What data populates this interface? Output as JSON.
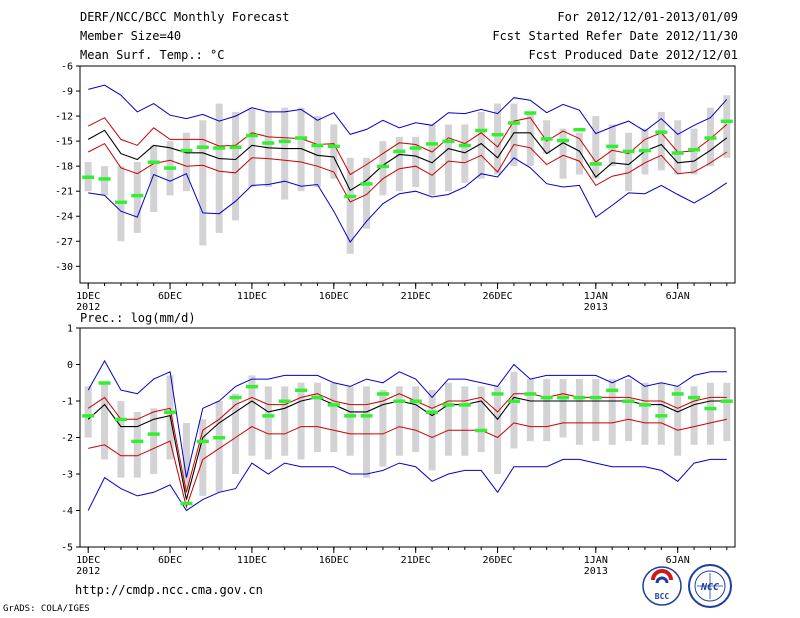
{
  "header": {
    "title": "DERF/NCC/BCC Monthly Forecast",
    "member_size": "Member Size=40",
    "variable": "Mean Surf. Temp.: °C",
    "forecast_for": "For 2012/12/01-2013/01/09",
    "started_refer": "Fcst Started Refer Date 2012/11/30",
    "produced": "Fcst Produced Date 2012/12/01"
  },
  "footer": {
    "url": "http://cmdp.ncc.cma.gov.cn",
    "grads": "GrADS: COLA/IGES",
    "logo_bcc": "BCC",
    "logo_ncc": "NCC"
  },
  "colors": {
    "mean": "#000000",
    "spread": "#cc0000",
    "extreme": "#0000cc",
    "observed": "#33ee33",
    "box": "#d3d3d6"
  },
  "chart_data": [
    {
      "type": "line",
      "title": "Mean Surf. Temp.: °C",
      "ylabel": "",
      "ylim": [
        -32,
        -6
      ],
      "yticks": [
        -6,
        -9,
        -12,
        -15,
        -18,
        -21,
        -24,
        -27,
        -30
      ],
      "xticks": [
        {
          "day": 1,
          "label": "1DEC",
          "sub": "2012"
        },
        {
          "day": 6,
          "label": "6DEC",
          "sub": ""
        },
        {
          "day": 11,
          "label": "11DEC",
          "sub": ""
        },
        {
          "day": 16,
          "label": "16DEC",
          "sub": ""
        },
        {
          "day": 21,
          "label": "21DEC",
          "sub": ""
        },
        {
          "day": 26,
          "label": "26DEC",
          "sub": ""
        },
        {
          "day": 32,
          "label": "1JAN",
          "sub": "2013"
        },
        {
          "day": 37,
          "label": "6JAN",
          "sub": ""
        }
      ],
      "days": 40,
      "box_low": [
        -21,
        -21.5,
        -27,
        -26,
        -23.5,
        -21.5,
        -21,
        -27.5,
        -26,
        -24.5,
        -20.5,
        -20.5,
        -22,
        -21,
        -20.5,
        -19.5,
        -28.5,
        -25.5,
        -21.5,
        -21,
        -20.5,
        -21.5,
        -21,
        -20,
        -19.5,
        -19,
        -18,
        -18,
        -16.5,
        -19.5,
        -19,
        -19.5,
        -18,
        -21,
        -19,
        -18.5,
        -19,
        -19,
        -18,
        -17
      ],
      "box_high": [
        -17.5,
        -18,
        -18,
        -17.5,
        -15.5,
        -15,
        -14,
        -12.5,
        -10.5,
        -11.5,
        -11,
        -11.5,
        -11,
        -11,
        -12,
        -13,
        -17,
        -17,
        -15,
        -14.5,
        -14.5,
        -13,
        -13,
        -13,
        -11.5,
        -10.5,
        -10.5,
        -11.5,
        -12.5,
        -13.5,
        -14,
        -12,
        -13,
        -14,
        -13.5,
        -11.5,
        -12.5,
        -13.5,
        -11,
        -9.5
      ],
      "series": [
        {
          "name": "max",
          "color": "#0000cc",
          "values": [
            -8.8,
            -8.3,
            -9.5,
            -11.5,
            -10.5,
            -11.9,
            -12.3,
            -11.8,
            -12.6,
            -12,
            -11,
            -11.5,
            -11.5,
            -11.2,
            -12.5,
            -11.6,
            -14.2,
            -13.6,
            -12.5,
            -13.4,
            -12.8,
            -13.1,
            -11.6,
            -11.7,
            -11.2,
            -11.7,
            -9.8,
            -10.1,
            -11.6,
            -10.6,
            -11.3,
            -14.1,
            -13.3,
            -12.6,
            -13.8,
            -12.3,
            -14.2,
            -13.1,
            -12.2,
            -10
          ]
        },
        {
          "name": "upper",
          "color": "#cc0000",
          "values": [
            -13.2,
            -12.2,
            -14.8,
            -15.5,
            -13.4,
            -14.8,
            -14.8,
            -14.8,
            -15.6,
            -15.5,
            -14,
            -14.5,
            -14.6,
            -14.7,
            -15.4,
            -15.3,
            -19,
            -17.8,
            -16.5,
            -15.2,
            -15.4,
            -16.3,
            -14.6,
            -15.3,
            -14,
            -15.7,
            -12.6,
            -12.2,
            -15,
            -13.8,
            -14.7,
            -17.5,
            -16.1,
            -16.5,
            -14.8,
            -14,
            -16.3,
            -16.2,
            -14.7,
            -13
          ]
        },
        {
          "name": "mean",
          "color": "#000000",
          "values": [
            -14.8,
            -13.7,
            -16.5,
            -17.2,
            -15.5,
            -15.8,
            -16.4,
            -16.4,
            -17.1,
            -17.2,
            -15.5,
            -15.8,
            -15.9,
            -15.9,
            -16.7,
            -16.9,
            -20.9,
            -19.7,
            -17.9,
            -16.6,
            -16.8,
            -17.6,
            -15.9,
            -16.4,
            -15.3,
            -17.0,
            -14.0,
            -14.0,
            -16.5,
            -15.2,
            -16.2,
            -19.3,
            -17.6,
            -17.8,
            -16.2,
            -15.4,
            -17.6,
            -17.4,
            -16.1,
            -14.6
          ]
        },
        {
          "name": "lower",
          "color": "#cc0000",
          "values": [
            -16.3,
            -15.3,
            -18.2,
            -18.9,
            -17.7,
            -17.3,
            -18,
            -17.9,
            -18.6,
            -18.8,
            -17,
            -17.1,
            -17.3,
            -17.5,
            -18,
            -18.7,
            -22.3,
            -21.4,
            -19.5,
            -18.3,
            -18,
            -19.1,
            -17.4,
            -17.6,
            -16.7,
            -18.7,
            -15.4,
            -15.8,
            -17.8,
            -16.7,
            -17.4,
            -20.3,
            -19.2,
            -18.8,
            -17.6,
            -16.7,
            -18.9,
            -18.7,
            -17.6,
            -16.3
          ]
        },
        {
          "name": "min",
          "color": "#0000cc",
          "values": [
            -21.2,
            -21.5,
            -23.4,
            -24.1,
            -19,
            -19.8,
            -18.9,
            -23.6,
            -23.7,
            -22.2,
            -20.3,
            -20.2,
            -19.8,
            -20.4,
            -20.2,
            -23.4,
            -27.1,
            -24.6,
            -22.5,
            -21.3,
            -21,
            -21.7,
            -21.4,
            -20.5,
            -18.9,
            -19.3,
            -17,
            -18.2,
            -20.1,
            -20.5,
            -20.3,
            -24.1,
            -22.7,
            -21.2,
            -21.3,
            -20.3,
            -21.4,
            -22.4,
            -21.3,
            -20
          ]
        }
      ],
      "observed": [
        -19.3,
        -19.5,
        -22.3,
        -21.5,
        -17.5,
        -18.2,
        -16.1,
        -15.7,
        -15.8,
        -15.7,
        -14.3,
        -15.2,
        -15,
        -14.6,
        -15.5,
        -15.6,
        -21.6,
        -20.1,
        -18,
        -16.2,
        -15.8,
        -15.3,
        -15,
        -15.5,
        -13.7,
        -14.2,
        -12.8,
        -11.6,
        -14.7,
        -14.9,
        -13.6,
        -17.7,
        -15.6,
        -16.2,
        -16.1,
        -13.9,
        -16.4,
        -16,
        -14.6,
        -12.6
      ]
    },
    {
      "type": "line",
      "title": "Prec.: log(mm/d)",
      "ylabel": "",
      "ylim": [
        -5,
        1
      ],
      "yticks": [
        1,
        0,
        -1,
        -2,
        -3,
        -4,
        -5
      ],
      "xticks": [
        {
          "day": 1,
          "label": "1DEC",
          "sub": "2012"
        },
        {
          "day": 6,
          "label": "6DEC",
          "sub": ""
        },
        {
          "day": 11,
          "label": "11DEC",
          "sub": ""
        },
        {
          "day": 16,
          "label": "16DEC",
          "sub": ""
        },
        {
          "day": 21,
          "label": "21DEC",
          "sub": ""
        },
        {
          "day": 26,
          "label": "26DEC",
          "sub": ""
        },
        {
          "day": 32,
          "label": "1JAN",
          "sub": "2013"
        },
        {
          "day": 37,
          "label": "6JAN",
          "sub": ""
        }
      ],
      "days": 40,
      "box_low": [
        -2,
        -2.6,
        -3.1,
        -3.1,
        -3,
        -2.6,
        -3.4,
        -3.6,
        -3.5,
        -3,
        -2.5,
        -2.6,
        -2.5,
        -2.6,
        -2.4,
        -2.4,
        -2.5,
        -3.1,
        -2.8,
        -2.5,
        -2.4,
        -2.9,
        -2.5,
        -2.5,
        -2.4,
        -3,
        -2.3,
        -2.1,
        -2.1,
        -2,
        -2.2,
        -2.1,
        -2.2,
        -2.1,
        -2.2,
        -2.2,
        -2.5,
        -2.2,
        -2.2,
        -2.1
      ],
      "box_high": [
        -0.6,
        -0.5,
        -1,
        -1.3,
        -1.2,
        -0.3,
        -1.6,
        -1.5,
        -1,
        -0.8,
        -0.3,
        -0.6,
        -0.6,
        -0.5,
        -0.5,
        -0.5,
        -0.6,
        -0.6,
        -0.7,
        -0.6,
        -0.6,
        -0.7,
        -0.5,
        -0.6,
        -0.6,
        -0.6,
        -0.2,
        -0.4,
        -0.4,
        -0.4,
        -0.4,
        -0.4,
        -0.4,
        -0.4,
        -0.5,
        -0.5,
        -0.6,
        -0.6,
        -0.5,
        -0.5
      ],
      "series": [
        {
          "name": "max",
          "color": "#0000cc",
          "values": [
            -0.7,
            0.1,
            -0.7,
            -0.8,
            -0.4,
            -0.2,
            -3.1,
            -1.2,
            -1,
            -0.6,
            -0.4,
            -0.4,
            -0.3,
            -0.3,
            -0.3,
            -0.5,
            -0.6,
            -0.4,
            -0.5,
            -0.2,
            -0.4,
            -0.9,
            -0.4,
            -0.4,
            -0.5,
            -0.6,
            0,
            -0.4,
            -0.3,
            -0.3,
            -0.3,
            -0.3,
            -0.5,
            -0.3,
            -0.6,
            -0.5,
            -0.6,
            -0.3,
            -0.2,
            -0.2
          ]
        },
        {
          "name": "upper",
          "color": "#cc0000",
          "values": [
            -1.2,
            -0.9,
            -1.5,
            -1.5,
            -1.3,
            -1.2,
            -3.5,
            -1.8,
            -1.5,
            -1.1,
            -0.9,
            -1.1,
            -1.1,
            -0.9,
            -0.8,
            -1,
            -1.1,
            -1.1,
            -1,
            -0.8,
            -1,
            -1.2,
            -1,
            -1,
            -0.9,
            -1.3,
            -0.8,
            -0.8,
            -0.9,
            -0.8,
            -0.9,
            -0.9,
            -0.9,
            -0.9,
            -1,
            -1,
            -1.2,
            -1,
            -0.9,
            -0.9
          ]
        },
        {
          "name": "mean",
          "color": "#000000",
          "values": [
            -1.5,
            -1.1,
            -1.7,
            -1.7,
            -1.5,
            -1.4,
            -3.7,
            -2,
            -1.6,
            -1.3,
            -1,
            -1.3,
            -1.2,
            -1,
            -0.9,
            -1.1,
            -1.3,
            -1.3,
            -1.1,
            -1,
            -1.1,
            -1.4,
            -1.1,
            -1.1,
            -1,
            -1.5,
            -0.9,
            -1,
            -1,
            -1,
            -1,
            -1,
            -1,
            -1,
            -1.1,
            -1.1,
            -1.3,
            -1.1,
            -1,
            -1
          ]
        },
        {
          "name": "lower",
          "color": "#cc0000",
          "values": [
            -2.3,
            -2.2,
            -2.5,
            -2.5,
            -2.3,
            -2.1,
            -3.9,
            -2.6,
            -2.3,
            -2,
            -1.7,
            -1.9,
            -1.9,
            -1.7,
            -1.7,
            -1.8,
            -1.9,
            -1.9,
            -1.9,
            -1.7,
            -1.8,
            -2,
            -1.8,
            -1.8,
            -1.8,
            -2,
            -1.6,
            -1.7,
            -1.7,
            -1.6,
            -1.6,
            -1.6,
            -1.6,
            -1.5,
            -1.6,
            -1.6,
            -1.8,
            -1.7,
            -1.6,
            -1.5
          ]
        },
        {
          "name": "min",
          "color": "#0000cc",
          "values": [
            -4,
            -3.1,
            -3.4,
            -3.6,
            -3.5,
            -3.3,
            -4,
            -3.7,
            -3.5,
            -3.4,
            -2.7,
            -3,
            -2.7,
            -2.8,
            -2.8,
            -2.8,
            -3,
            -3,
            -2.9,
            -2.7,
            -2.8,
            -3.2,
            -3,
            -2.9,
            -2.9,
            -3.5,
            -2.8,
            -2.8,
            -2.8,
            -2.6,
            -2.6,
            -2.7,
            -2.8,
            -2.8,
            -2.8,
            -2.9,
            -3.2,
            -2.7,
            -2.6,
            -2.6
          ]
        }
      ],
      "observed": [
        -1.4,
        -0.5,
        -1.5,
        -2.1,
        -1.9,
        -1.3,
        -3.8,
        -2.1,
        -2,
        -0.9,
        -0.6,
        -1.4,
        -1,
        -0.7,
        -0.9,
        -1.1,
        -1.4,
        -1.4,
        -0.8,
        -1,
        -1,
        -1.3,
        -1.1,
        -1.1,
        -1.8,
        -0.8,
        -1,
        -0.8,
        -0.9,
        -0.9,
        -0.9,
        -0.9,
        -0.7,
        -1,
        -1.1,
        -1.4,
        -0.8,
        -0.9,
        -1.2,
        -1
      ]
    }
  ]
}
